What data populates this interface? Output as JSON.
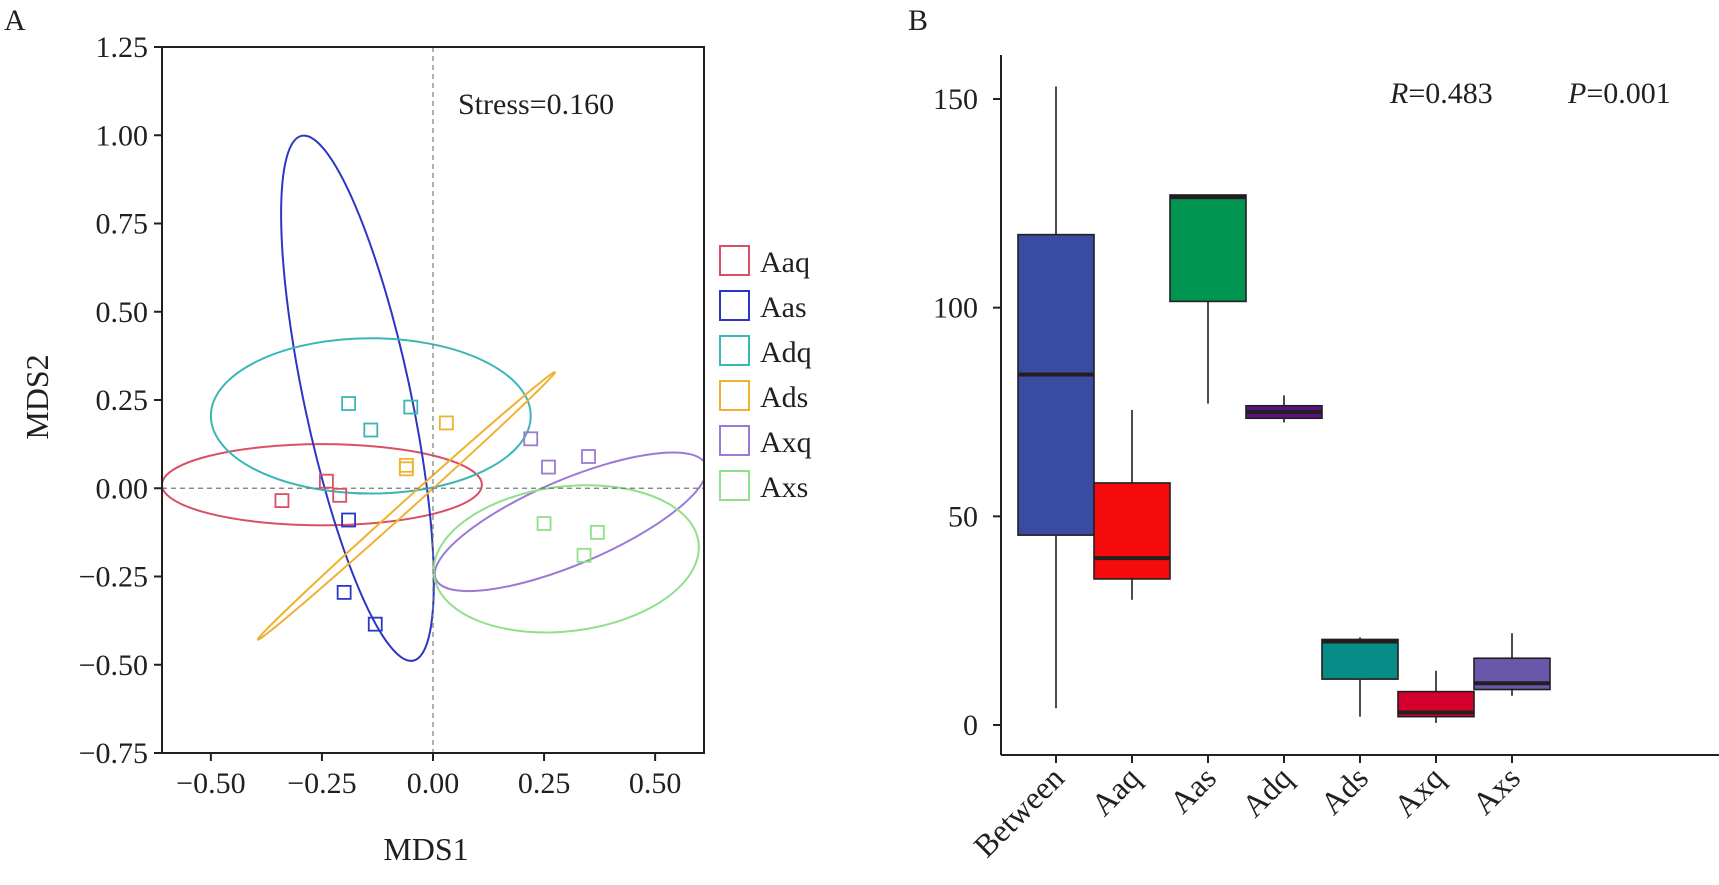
{
  "panels": {
    "a_label": "A",
    "b_label": "B"
  },
  "chart_data": [
    {
      "type": "scatter",
      "subtype": "NMDS ordination",
      "xlabel": "MDS1",
      "ylabel": "MDS2",
      "xlim": [
        -0.61,
        0.61
      ],
      "ylim": [
        -0.75,
        1.25
      ],
      "xticks": [
        -0.5,
        -0.25,
        0.0,
        0.25,
        0.5
      ],
      "xtick_labels": [
        "−0.50",
        "−0.25",
        "0.00",
        "0.25",
        "0.50"
      ],
      "yticks": [
        1.25,
        1.0,
        0.75,
        0.5,
        0.25,
        0.0,
        -0.25,
        -0.5,
        -0.75
      ],
      "ytick_labels": [
        "1.25",
        "1.00",
        "0.75",
        "0.50",
        "0.25",
        "0.00",
        "−0.25",
        "−0.50",
        "−0.75"
      ],
      "reference_lines": {
        "x": 0,
        "y": 0,
        "style": "dashed"
      },
      "annotation": "Stress=0.160",
      "legend_position": "right",
      "series": [
        {
          "name": "Aaq",
          "color": "#d94f63",
          "points": [
            [
              -0.34,
              -0.035
            ],
            [
              -0.24,
              0.02
            ],
            [
              -0.21,
              -0.02
            ]
          ],
          "ellipse": {
            "center": [
              -0.25,
              0.01
            ],
            "rx": 0.36,
            "ry": 0.115,
            "angle": 0
          }
        },
        {
          "name": "Aas",
          "color": "#2b36c4",
          "points": [
            [
              -0.19,
              -0.09
            ],
            [
              -0.2,
              -0.295
            ],
            [
              -0.13,
              -0.385
            ]
          ],
          "ellipse": {
            "center": [
              -0.17,
              0.255
            ],
            "rx": 0.12,
            "ry": 0.76,
            "angle": -12
          }
        },
        {
          "name": "Adq",
          "color": "#3db5b5",
          "points": [
            [
              -0.19,
              0.24
            ],
            [
              -0.14,
              0.165
            ],
            [
              -0.05,
              0.23
            ]
          ],
          "ellipse": {
            "center": [
              -0.14,
              0.205
            ],
            "rx": 0.36,
            "ry": 0.22,
            "angle": 0
          }
        },
        {
          "name": "Ads",
          "color": "#f0b030",
          "points": [
            [
              -0.06,
              0.055
            ],
            [
              -0.06,
              0.065
            ],
            [
              0.03,
              0.185
            ]
          ],
          "ellipse": {
            "center": [
              -0.06,
              -0.05
            ],
            "rx": 0.45,
            "ry": 0.01,
            "angle": -42
          }
        },
        {
          "name": "Axq",
          "color": "#9b7ad6",
          "points": [
            [
              0.22,
              0.14
            ],
            [
              0.26,
              0.06
            ],
            [
              0.35,
              0.09
            ]
          ],
          "ellipse": {
            "center": [
              0.31,
              -0.095
            ],
            "rx": 0.33,
            "ry": 0.12,
            "angle": -23
          }
        },
        {
          "name": "Axs",
          "color": "#8fe08a",
          "points": [
            [
              0.25,
              -0.1
            ],
            [
              0.37,
              -0.125
            ],
            [
              0.34,
              -0.19
            ]
          ],
          "ellipse": {
            "center": [
              0.3,
              -0.2
            ],
            "rx": 0.3,
            "ry": 0.205,
            "angle": -7
          }
        }
      ]
    },
    {
      "type": "box",
      "categories": [
        "Between",
        "Aaq",
        "Aas",
        "Adq",
        "Ads",
        "Axq",
        "Axs"
      ],
      "ylim": [
        -6,
        162
      ],
      "yticks": [
        0,
        50,
        100,
        150
      ],
      "ytick_labels": [
        "0",
        "50",
        "100",
        "150"
      ],
      "annotation_r_label": "R",
      "annotation_r_value": "=0.483",
      "annotation_p_label": "P",
      "annotation_p_value": "=0.001",
      "boxes": [
        {
          "category": "Between",
          "color": "#3a4ba2",
          "min": 4,
          "q1": 45.5,
          "median": 84,
          "q3": 117.5,
          "max": 153
        },
        {
          "category": "Aaq",
          "color": "#f50b0b",
          "min": 30,
          "q1": 35,
          "median": 40,
          "q3": 58,
          "max": 75.5
        },
        {
          "category": "Aas",
          "color": "#00954f",
          "min": 77,
          "q1": 101.5,
          "median": 126.5,
          "q3": 127,
          "max": 127
        },
        {
          "category": "Adq",
          "color": "#5c1186",
          "min": 72.5,
          "q1": 73.5,
          "median": 75,
          "q3": 76.5,
          "max": 79
        },
        {
          "category": "Ads",
          "color": "#088c88",
          "min": 2,
          "q1": 11,
          "median": 20,
          "q3": 20.5,
          "max": 21
        },
        {
          "category": "Axq",
          "color": "#d4002c",
          "min": 0.5,
          "q1": 2,
          "median": 3,
          "q3": 8,
          "max": 13
        },
        {
          "category": "Axs",
          "color": "#6957aa",
          "min": 7,
          "q1": 8.5,
          "median": 10,
          "q3": 16,
          "max": 22
        }
      ]
    }
  ]
}
